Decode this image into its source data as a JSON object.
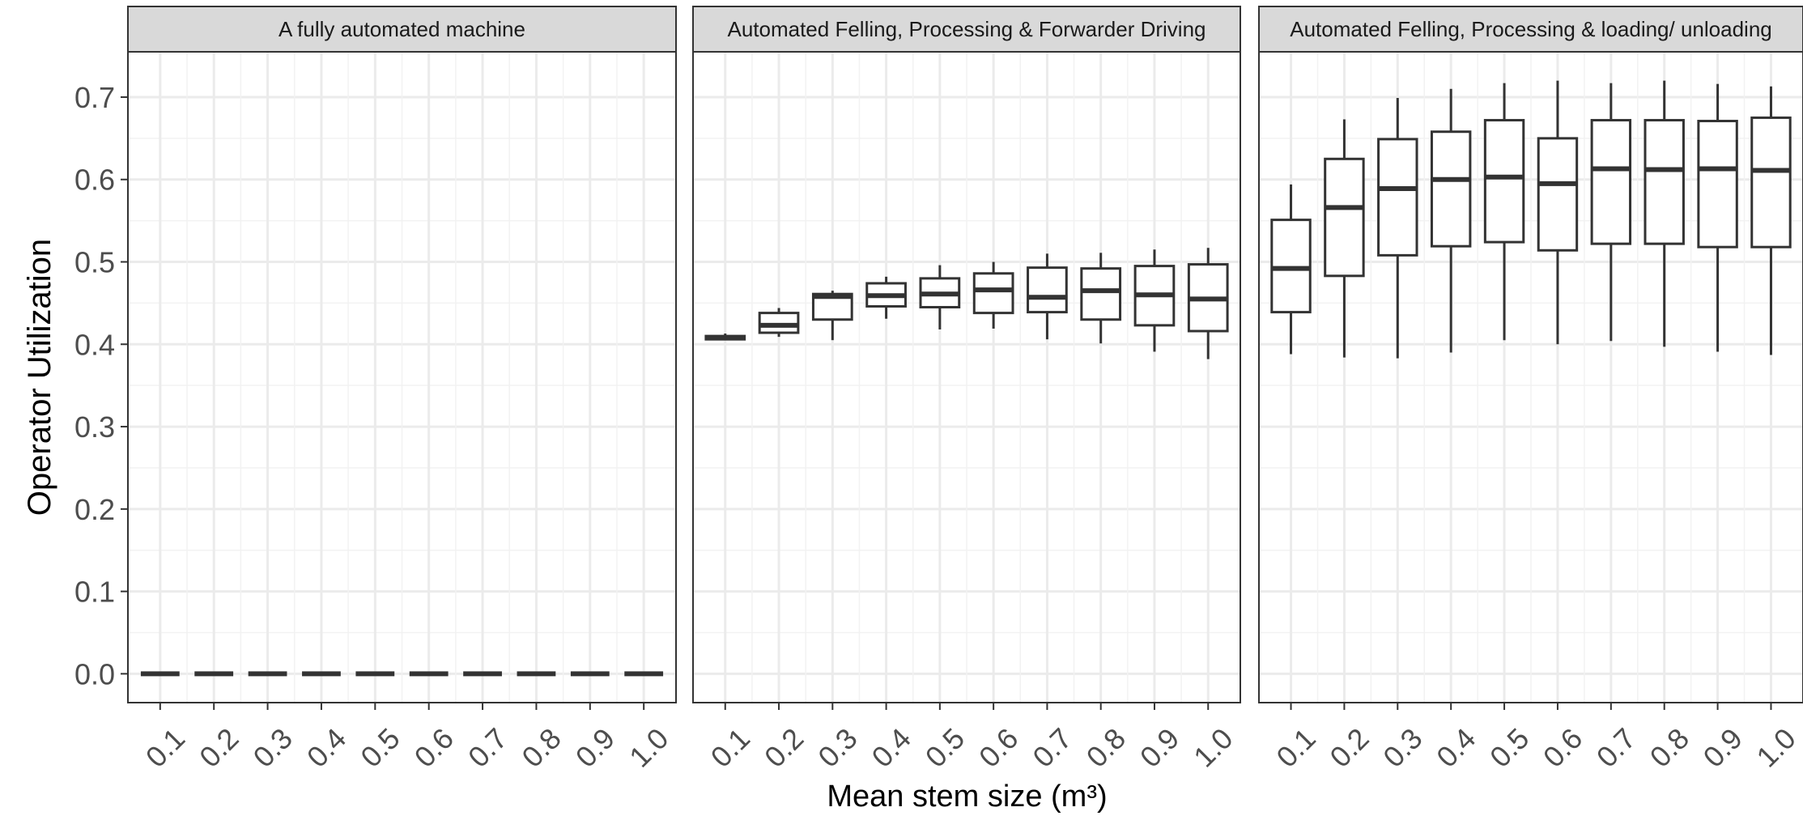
{
  "chart_data": {
    "type": "boxplot",
    "xlabel": "Mean stem size (m³)",
    "ylabel": "Operator Utilization",
    "ylim": [
      -0.035,
      0.755
    ],
    "y_ticks": [
      "0.0",
      "0.1",
      "0.2",
      "0.3",
      "0.4",
      "0.5",
      "0.6",
      "0.7"
    ],
    "categories": [
      "0.1",
      "0.2",
      "0.3",
      "0.4",
      "0.5",
      "0.6",
      "0.7",
      "0.8",
      "0.9",
      "1.0"
    ],
    "grid": true,
    "theme": "bw",
    "panels": [
      {
        "title": "A fully automated machine",
        "boxes": [
          {
            "x": "0.1",
            "min": 0.0,
            "q1": 0.0,
            "median": 0.0,
            "q3": 0.0,
            "max": 0.0
          },
          {
            "x": "0.2",
            "min": 0.0,
            "q1": 0.0,
            "median": 0.0,
            "q3": 0.0,
            "max": 0.0
          },
          {
            "x": "0.3",
            "min": 0.0,
            "q1": 0.0,
            "median": 0.0,
            "q3": 0.0,
            "max": 0.0
          },
          {
            "x": "0.4",
            "min": 0.0,
            "q1": 0.0,
            "median": 0.0,
            "q3": 0.0,
            "max": 0.0
          },
          {
            "x": "0.5",
            "min": 0.0,
            "q1": 0.0,
            "median": 0.0,
            "q3": 0.0,
            "max": 0.0
          },
          {
            "x": "0.6",
            "min": 0.0,
            "q1": 0.0,
            "median": 0.0,
            "q3": 0.0,
            "max": 0.0
          },
          {
            "x": "0.7",
            "min": 0.0,
            "q1": 0.0,
            "median": 0.0,
            "q3": 0.0,
            "max": 0.0
          },
          {
            "x": "0.8",
            "min": 0.0,
            "q1": 0.0,
            "median": 0.0,
            "q3": 0.0,
            "max": 0.0
          },
          {
            "x": "0.9",
            "min": 0.0,
            "q1": 0.0,
            "median": 0.0,
            "q3": 0.0,
            "max": 0.0
          },
          {
            "x": "1.0",
            "min": 0.0,
            "q1": 0.0,
            "median": 0.0,
            "q3": 0.0,
            "max": 0.0
          }
        ]
      },
      {
        "title": "Automated Felling, Processing & Forwarder Driving",
        "boxes": [
          {
            "x": "0.1",
            "min": 0.406,
            "q1": 0.406,
            "median": 0.408,
            "q3": 0.41,
            "max": 0.413
          },
          {
            "x": "0.2",
            "min": 0.409,
            "q1": 0.414,
            "median": 0.423,
            "q3": 0.438,
            "max": 0.444
          },
          {
            "x": "0.3",
            "min": 0.405,
            "q1": 0.43,
            "median": 0.458,
            "q3": 0.461,
            "max": 0.465
          },
          {
            "x": "0.4",
            "min": 0.431,
            "q1": 0.446,
            "median": 0.459,
            "q3": 0.474,
            "max": 0.482
          },
          {
            "x": "0.5",
            "min": 0.418,
            "q1": 0.445,
            "median": 0.461,
            "q3": 0.48,
            "max": 0.496
          },
          {
            "x": "0.6",
            "min": 0.419,
            "q1": 0.438,
            "median": 0.466,
            "q3": 0.486,
            "max": 0.5
          },
          {
            "x": "0.7",
            "min": 0.406,
            "q1": 0.439,
            "median": 0.457,
            "q3": 0.493,
            "max": 0.51
          },
          {
            "x": "0.8",
            "min": 0.401,
            "q1": 0.43,
            "median": 0.465,
            "q3": 0.492,
            "max": 0.511
          },
          {
            "x": "0.9",
            "min": 0.391,
            "q1": 0.423,
            "median": 0.46,
            "q3": 0.495,
            "max": 0.515
          },
          {
            "x": "1.0",
            "min": 0.382,
            "q1": 0.416,
            "median": 0.455,
            "q3": 0.497,
            "max": 0.517
          }
        ]
      },
      {
        "title": "Automated Felling, Processing & loading/ unloading",
        "boxes": [
          {
            "x": "0.1",
            "min": 0.388,
            "q1": 0.439,
            "median": 0.492,
            "q3": 0.551,
            "max": 0.594
          },
          {
            "x": "0.2",
            "min": 0.384,
            "q1": 0.483,
            "median": 0.566,
            "q3": 0.625,
            "max": 0.673
          },
          {
            "x": "0.3",
            "min": 0.383,
            "q1": 0.508,
            "median": 0.589,
            "q3": 0.649,
            "max": 0.699
          },
          {
            "x": "0.4",
            "min": 0.39,
            "q1": 0.519,
            "median": 0.6,
            "q3": 0.658,
            "max": 0.71
          },
          {
            "x": "0.5",
            "min": 0.405,
            "q1": 0.524,
            "median": 0.603,
            "q3": 0.672,
            "max": 0.717
          },
          {
            "x": "0.6",
            "min": 0.4,
            "q1": 0.514,
            "median": 0.595,
            "q3": 0.65,
            "max": 0.72
          },
          {
            "x": "0.7",
            "min": 0.404,
            "q1": 0.522,
            "median": 0.613,
            "q3": 0.672,
            "max": 0.717
          },
          {
            "x": "0.8",
            "min": 0.397,
            "q1": 0.522,
            "median": 0.612,
            "q3": 0.672,
            "max": 0.72
          },
          {
            "x": "0.9",
            "min": 0.391,
            "q1": 0.518,
            "median": 0.613,
            "q3": 0.671,
            "max": 0.716
          },
          {
            "x": "1.0",
            "min": 0.387,
            "q1": 0.518,
            "median": 0.611,
            "q3": 0.675,
            "max": 0.713
          }
        ]
      }
    ]
  },
  "colors": {
    "strip_fill": "#d9d9d9",
    "panel_border": "#333333",
    "grid_major": "#ebebeb",
    "grid_minor": "#f2f2f2",
    "box_line": "#333333",
    "tick_text": "#4d4d4d",
    "axis_title": "#000000"
  }
}
